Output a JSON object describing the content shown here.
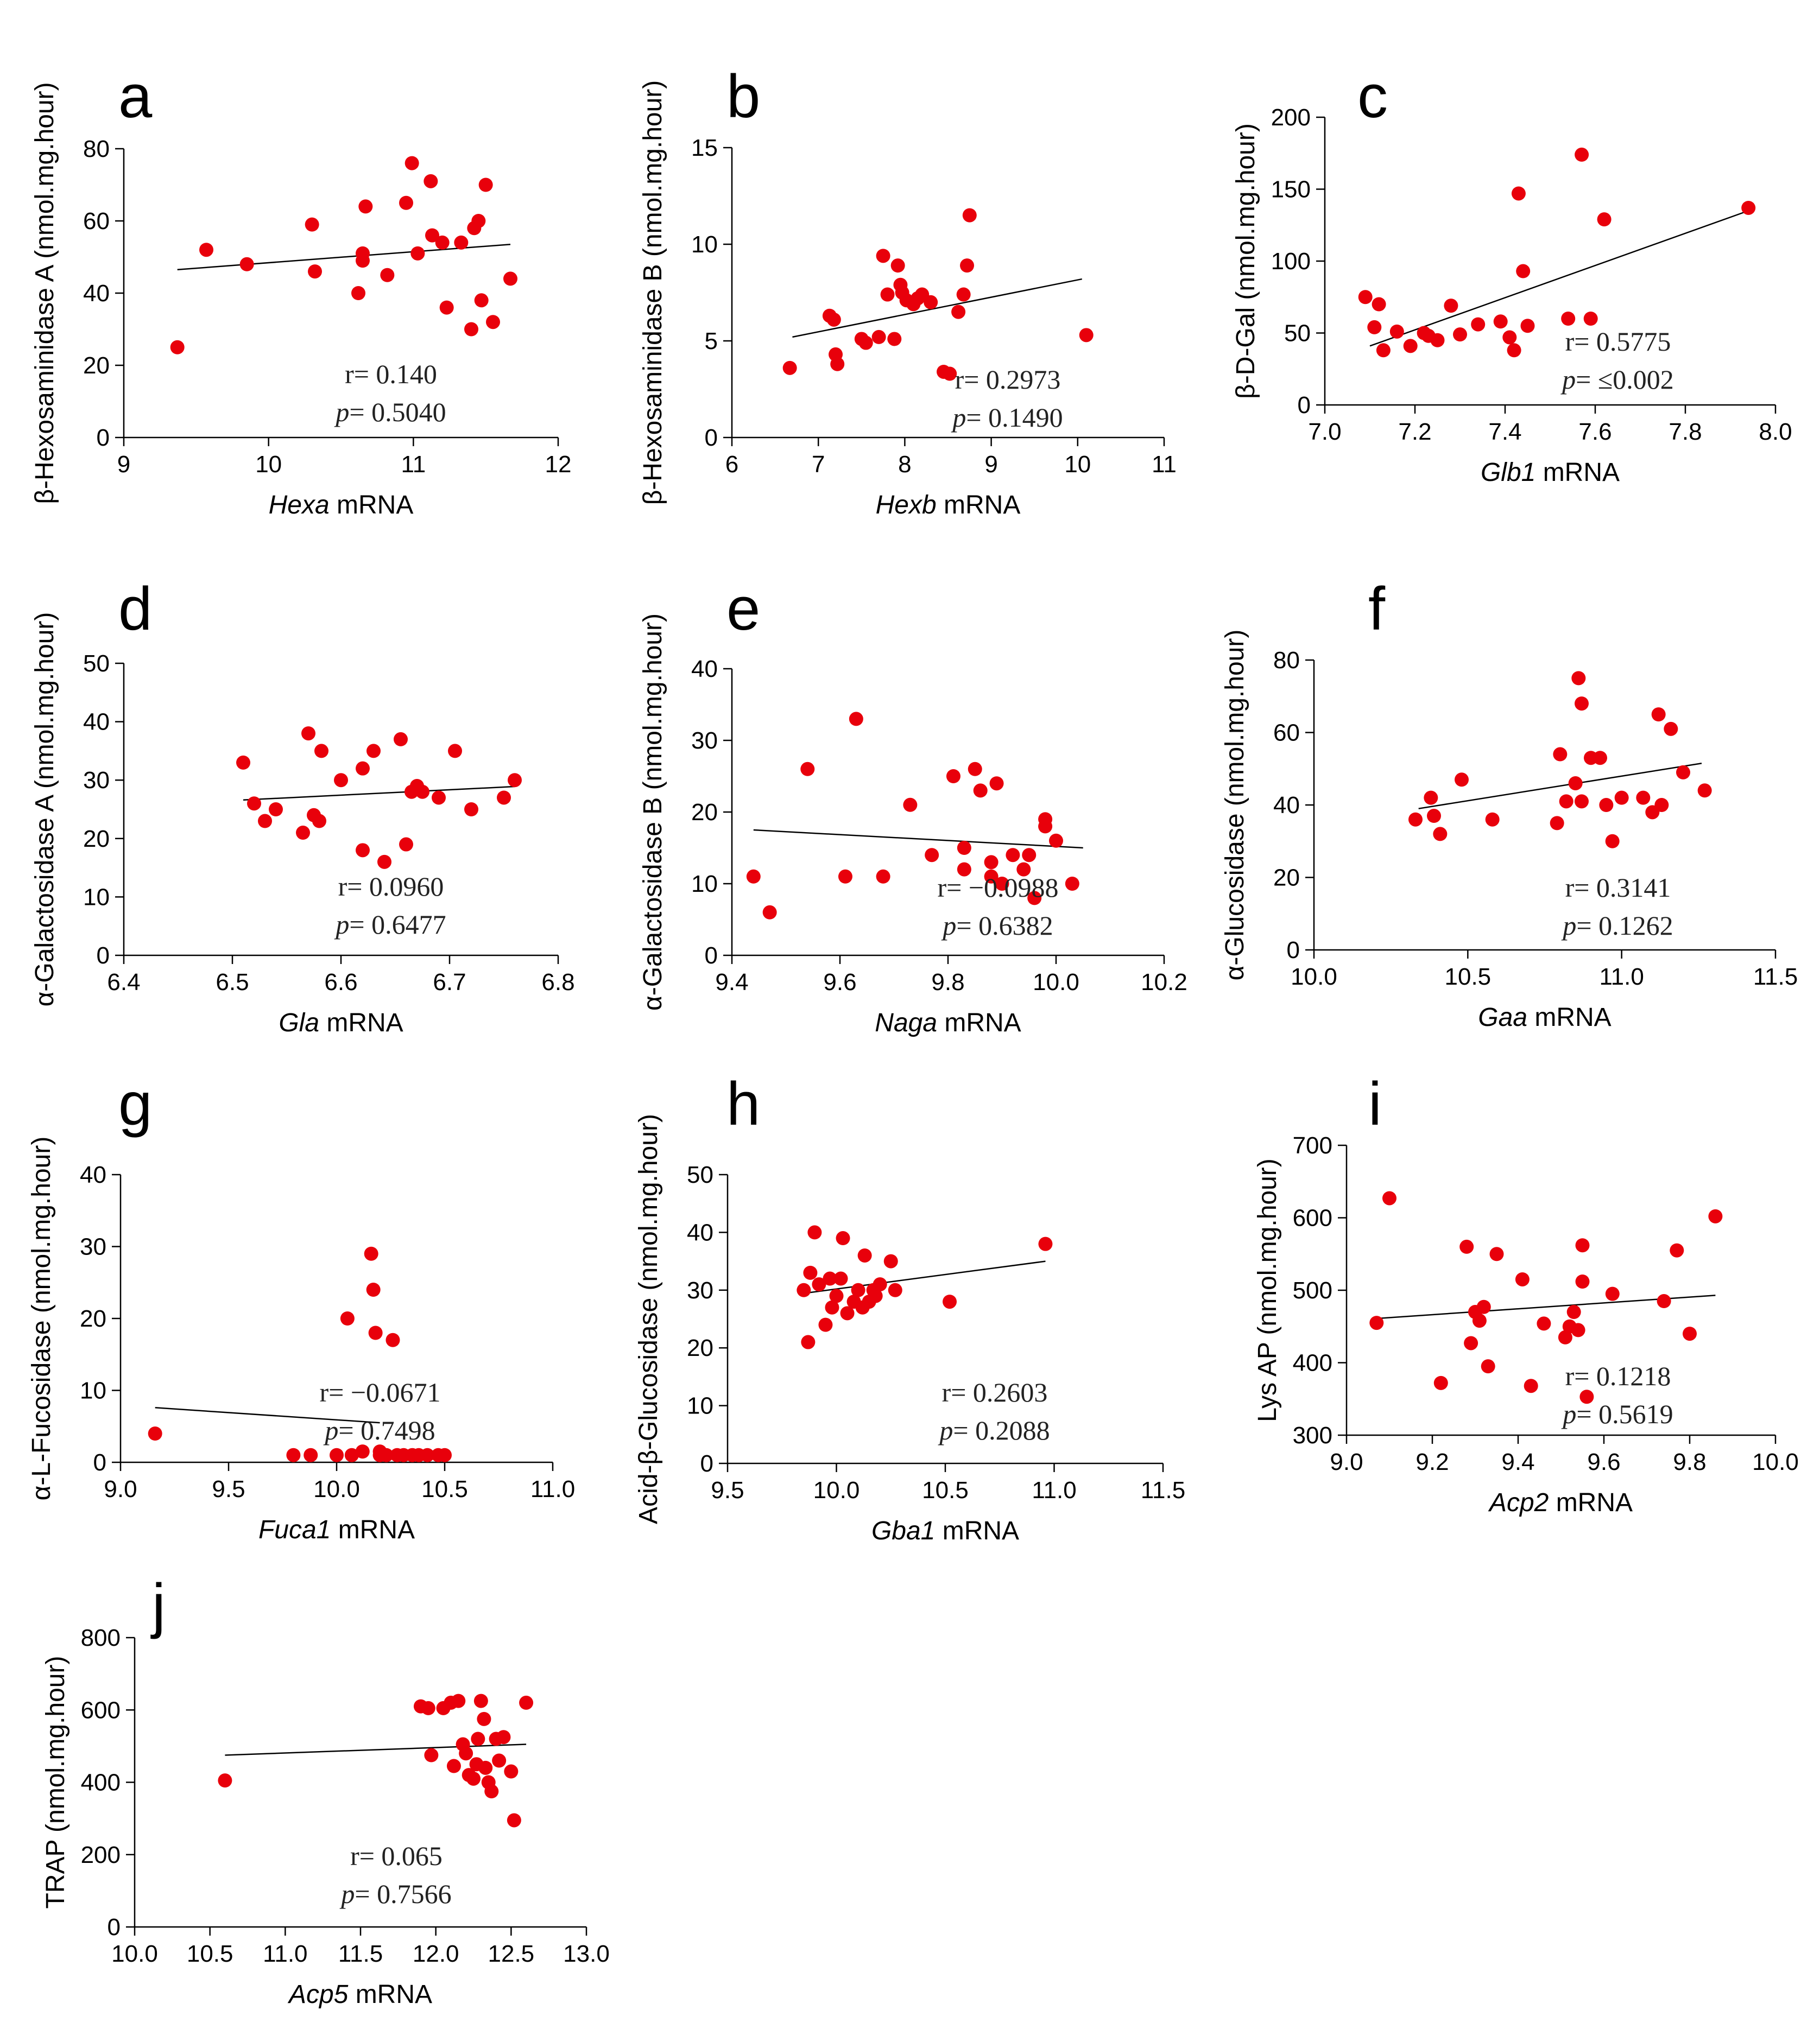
{
  "colors": {
    "point": "#e8000b",
    "axis": "#000000",
    "line": "#000000"
  },
  "chart_data": [
    {
      "type": "scatter",
      "panel": "a",
      "title": "",
      "xlabel_italic": "Hexa",
      "xlabel_suffix": " mRNA",
      "ylabel": "β-Hexosaminidase A (nmol.mg.hour)",
      "xlim": [
        9,
        12
      ],
      "ylim": [
        0,
        80
      ],
      "xticks": [
        9,
        10,
        11,
        12
      ],
      "xtick_labels": [
        "9",
        "10",
        "11",
        "12"
      ],
      "yticks": [
        0,
        20,
        40,
        60,
        80
      ],
      "ytick_labels": [
        "0",
        "20",
        "40",
        "60",
        "80"
      ],
      "x": [
        9.37,
        9.57,
        9.85,
        10.3,
        10.32,
        10.62,
        10.65,
        10.65,
        10.67,
        10.82,
        10.95,
        10.99,
        11.03,
        11.12,
        11.13,
        11.2,
        11.23,
        11.33,
        11.4,
        11.42,
        11.45,
        11.47,
        11.5,
        11.55,
        11.67
      ],
      "y": [
        25,
        52,
        48,
        59,
        46,
        40,
        51,
        49,
        64,
        45,
        65,
        76,
        51,
        71,
        56,
        54,
        36,
        54,
        30,
        58,
        60,
        38,
        70,
        32,
        44
      ],
      "fit": {
        "x": [
          9.37,
          11.67
        ],
        "y": [
          46.5,
          53.5
        ]
      },
      "stats": {
        "r": "r= 0.140",
        "p_label": "p",
        "p_value": "= 0.5040"
      }
    },
    {
      "type": "scatter",
      "panel": "b",
      "title": "",
      "xlabel_italic": "Hexb",
      "xlabel_suffix": " mRNA",
      "ylabel": "β-Hexosaminidase B (nmol.mg.hour)",
      "xlim": [
        6,
        11
      ],
      "ylim": [
        0,
        15
      ],
      "xticks": [
        6,
        7,
        8,
        9,
        10,
        11
      ],
      "xtick_labels": [
        "6",
        "7",
        "8",
        "9",
        "10",
        "11"
      ],
      "yticks": [
        0,
        5,
        10,
        15
      ],
      "ytick_labels": [
        "0",
        "5",
        "10",
        "15"
      ],
      "x": [
        6.67,
        7.13,
        7.18,
        7.2,
        7.22,
        7.5,
        7.55,
        7.7,
        7.75,
        7.8,
        7.88,
        7.92,
        7.95,
        7.97,
        8.02,
        8.1,
        8.15,
        8.2,
        8.3,
        8.45,
        8.52,
        8.62,
        8.68,
        8.72,
        8.75,
        10.1
      ],
      "y": [
        3.6,
        6.3,
        6.1,
        4.3,
        3.8,
        5.1,
        4.9,
        5.2,
        9.4,
        7.4,
        5.1,
        8.9,
        7.9,
        7.5,
        7.1,
        6.9,
        7.2,
        7.4,
        7.0,
        3.4,
        3.3,
        6.5,
        7.4,
        8.9,
        11.5,
        5.3
      ],
      "fit": {
        "x": [
          6.7,
          10.05
        ],
        "y": [
          5.2,
          8.2
        ]
      },
      "stats": {
        "r": "r= 0.2973",
        "p_label": "p",
        "p_value": "= 0.1490"
      }
    },
    {
      "type": "scatter",
      "panel": "c",
      "title": "",
      "xlabel_italic": "Glb1",
      "xlabel_suffix": " mRNA",
      "ylabel": "β-D-Gal (nmol.mg.hour)",
      "xlim": [
        7.0,
        8.0
      ],
      "ylim": [
        0,
        200
      ],
      "xticks": [
        7.0,
        7.2,
        7.4,
        7.6,
        7.8,
        8.0
      ],
      "xtick_labels": [
        "7.0",
        "7.2",
        "7.4",
        "7.6",
        "7.8",
        "8.0"
      ],
      "yticks": [
        0,
        50,
        100,
        150,
        200
      ],
      "ytick_labels": [
        "0",
        "50",
        "100",
        "150",
        "200"
      ],
      "x": [
        7.09,
        7.11,
        7.12,
        7.13,
        7.16,
        7.19,
        7.22,
        7.23,
        7.25,
        7.28,
        7.3,
        7.34,
        7.39,
        7.41,
        7.42,
        7.43,
        7.44,
        7.45,
        7.54,
        7.57,
        7.59,
        7.62,
        7.94
      ],
      "y": [
        75,
        54,
        70,
        38,
        51,
        41,
        50,
        48,
        45,
        69,
        49,
        56,
        58,
        47,
        38,
        147,
        93,
        55,
        60,
        174,
        60,
        129,
        137
      ],
      "fit": {
        "x": [
          7.1,
          7.94
        ],
        "y": [
          41,
          135
        ]
      },
      "stats": {
        "r": "r= 0.5775",
        "p_label": "p",
        "p_value": "= ≤0.002"
      }
    },
    {
      "type": "scatter",
      "panel": "d",
      "title": "",
      "xlabel_italic": "Gla",
      "xlabel_suffix": " mRNA",
      "ylabel": "α-Galactosidase A (nmol.mg.hour)",
      "xlim": [
        6.4,
        6.8
      ],
      "ylim": [
        0,
        50
      ],
      "xticks": [
        6.4,
        6.5,
        6.6,
        6.7,
        6.8
      ],
      "xtick_labels": [
        "6.4",
        "6.5",
        "6.6",
        "6.7",
        "6.8"
      ],
      "yticks": [
        0,
        10,
        20,
        30,
        40,
        50
      ],
      "ytick_labels": [
        "0",
        "10",
        "20",
        "30",
        "40",
        "50"
      ],
      "x": [
        6.51,
        6.52,
        6.53,
        6.54,
        6.565,
        6.57,
        6.575,
        6.58,
        6.582,
        6.6,
        6.62,
        6.62,
        6.63,
        6.64,
        6.655,
        6.66,
        6.665,
        6.67,
        6.675,
        6.69,
        6.705,
        6.72,
        6.75,
        6.76
      ],
      "y": [
        33,
        26,
        23,
        25,
        21,
        38,
        24,
        23,
        35,
        30,
        18,
        32,
        35,
        16,
        37,
        19,
        28,
        29,
        28,
        27,
        35,
        25,
        27,
        30
      ],
      "fit": {
        "x": [
          6.51,
          6.76
        ],
        "y": [
          26.6,
          28.9
        ]
      },
      "stats": {
        "r": "r= 0.0960",
        "p_label": "p",
        "p_value": "= 0.6477"
      }
    },
    {
      "type": "scatter",
      "panel": "e",
      "title": "",
      "xlabel_italic": "Naga",
      "xlabel_suffix": " mRNA",
      "ylabel": "α-Galactosidase B (nmol.mg.hour)",
      "xlim": [
        9.4,
        10.2
      ],
      "ylim": [
        0,
        40
      ],
      "xticks": [
        9.4,
        9.6,
        9.8,
        10.0,
        10.2
      ],
      "xtick_labels": [
        "9.4",
        "9.6",
        "9.8",
        "10.0",
        "10.2"
      ],
      "yticks": [
        0,
        10,
        20,
        30,
        40
      ],
      "ytick_labels": [
        "0",
        "10",
        "20",
        "30",
        "40"
      ],
      "x": [
        9.44,
        9.47,
        9.54,
        9.61,
        9.63,
        9.68,
        9.73,
        9.77,
        9.81,
        9.83,
        9.83,
        9.85,
        9.86,
        9.88,
        9.88,
        9.89,
        9.9,
        9.92,
        9.94,
        9.95,
        9.96,
        9.98,
        9.98,
        10.0,
        10.03
      ],
      "y": [
        11,
        6,
        26,
        11,
        33,
        11,
        21,
        14,
        25,
        12,
        15,
        26,
        23,
        13,
        11,
        24,
        10,
        14,
        12,
        14,
        8,
        19,
        18,
        16,
        10
      ],
      "fit": {
        "x": [
          9.44,
          10.05
        ],
        "y": [
          17.5,
          15.0
        ]
      },
      "stats": {
        "r": "r= −0.0988",
        "p_label": "p",
        "p_value": "=  0.6382"
      }
    },
    {
      "type": "scatter",
      "panel": "f",
      "title": "",
      "xlabel_italic": "Gaa",
      "xlabel_suffix": " mRNA",
      "ylabel": "α-Glucosidase (nmol.mg.hour)",
      "xlim": [
        10.0,
        11.5
      ],
      "ylim": [
        0,
        80
      ],
      "xticks": [
        10.0,
        10.5,
        11.0,
        11.5
      ],
      "xtick_labels": [
        "10.0",
        "10.5",
        "11.0",
        "11.5"
      ],
      "yticks": [
        0,
        20,
        40,
        60,
        80
      ],
      "ytick_labels": [
        "0",
        "20",
        "40",
        "60",
        "80"
      ],
      "x": [
        10.33,
        10.38,
        10.39,
        10.41,
        10.48,
        10.58,
        10.79,
        10.8,
        10.82,
        10.85,
        10.86,
        10.87,
        10.87,
        10.9,
        10.93,
        10.95,
        10.97,
        11.0,
        11.07,
        11.1,
        11.12,
        11.13,
        11.16,
        11.2,
        11.27
      ],
      "y": [
        36,
        42,
        37,
        32,
        47,
        36,
        35,
        54,
        41,
        46,
        75,
        41,
        68,
        53,
        53,
        40,
        30,
        42,
        42,
        38,
        65,
        40,
        61,
        49,
        44
      ],
      "fit": {
        "x": [
          10.34,
          11.26
        ],
        "y": [
          39.0,
          51.5
        ]
      },
      "stats": {
        "r": "r= 0.3141",
        "p_label": "p",
        "p_value": "= 0.1262"
      }
    },
    {
      "type": "scatter",
      "panel": "g",
      "title": "",
      "xlabel_italic": "Fuca1",
      "xlabel_suffix": " mRNA",
      "ylabel": "α-L-Fucosidase (nmol.mg.hour)",
      "xlim": [
        9.0,
        11.0
      ],
      "ylim": [
        0,
        40
      ],
      "xticks": [
        9.0,
        9.5,
        10.0,
        10.5,
        11.0
      ],
      "xtick_labels": [
        "9.0",
        "9.5",
        "10.0",
        "10.5",
        "11.0"
      ],
      "yticks": [
        0,
        10,
        20,
        30,
        40
      ],
      "ytick_labels": [
        "0",
        "10",
        "20",
        "30",
        "40"
      ],
      "x": [
        9.16,
        9.8,
        9.88,
        10.0,
        10.05,
        10.07,
        10.12,
        10.16,
        10.17,
        10.18,
        10.2,
        10.2,
        10.23,
        10.26,
        10.28,
        10.31,
        10.35,
        10.38,
        10.42,
        10.47,
        10.5
      ],
      "y": [
        4,
        1,
        1,
        1,
        20,
        1,
        1.5,
        29,
        24,
        18,
        1.5,
        1,
        1,
        17,
        1,
        1,
        1,
        1,
        1,
        1,
        1
      ],
      "fit": {
        "x": [
          9.16,
          10.2
        ],
        "y": [
          7.6,
          5.5
        ]
      },
      "stats": {
        "r": "r= −0.0671",
        "p_label": "p",
        "p_value": "= 0.7498"
      }
    },
    {
      "type": "scatter",
      "panel": "h",
      "title": "",
      "xlabel_italic": "Gba1",
      "xlabel_suffix": " mRNA",
      "ylabel": "Acid-β-Glucosidase (nmol.mg.hour)",
      "xlim": [
        9.5,
        11.5
      ],
      "ylim": [
        0,
        50
      ],
      "xticks": [
        9.5,
        10.0,
        10.5,
        11.0,
        11.5
      ],
      "xtick_labels": [
        "9.5",
        "10.0",
        "10.5",
        "11.0",
        "11.5"
      ],
      "yticks": [
        0,
        10,
        20,
        30,
        40,
        50
      ],
      "ytick_labels": [
        "0",
        "10",
        "20",
        "30",
        "40",
        "50"
      ],
      "x": [
        9.85,
        9.87,
        9.88,
        9.9,
        9.92,
        9.95,
        9.97,
        9.98,
        10.0,
        10.02,
        10.03,
        10.05,
        10.08,
        10.1,
        10.12,
        10.13,
        10.15,
        10.17,
        10.18,
        10.2,
        10.25,
        10.27,
        10.52,
        10.96
      ],
      "y": [
        30,
        21,
        33,
        40,
        31,
        24,
        32,
        27,
        29,
        32,
        39,
        26,
        28,
        30,
        27,
        36,
        28,
        30,
        29,
        31,
        35,
        30,
        28,
        38
      ],
      "fit": {
        "x": [
          9.86,
          10.96
        ],
        "y": [
          29.5,
          35.0
        ]
      },
      "stats": {
        "r": "r= 0.2603",
        "p_label": "p",
        "p_value": "= 0.2088"
      }
    },
    {
      "type": "scatter",
      "panel": "i",
      "title": "",
      "xlabel_italic": "Acp2",
      "xlabel_suffix": " mRNA",
      "ylabel": "Lys AP (nmol.mg.hour)",
      "xlim": [
        9.0,
        10.0
      ],
      "ylim": [
        300,
        700
      ],
      "xticks": [
        9.0,
        9.2,
        9.4,
        9.6,
        9.8,
        10.0
      ],
      "xtick_labels": [
        "9.0",
        "9.2",
        "9.4",
        "9.6",
        "9.8",
        "10.0"
      ],
      "yticks": [
        300,
        400,
        500,
        600,
        700
      ],
      "ytick_labels": [
        "300",
        "400",
        "500",
        "600",
        "700"
      ],
      "x": [
        9.07,
        9.1,
        9.22,
        9.28,
        9.29,
        9.3,
        9.31,
        9.32,
        9.33,
        9.35,
        9.41,
        9.43,
        9.46,
        9.51,
        9.52,
        9.53,
        9.54,
        9.55,
        9.56,
        9.55,
        9.62,
        9.74,
        9.77,
        9.8,
        9.86
      ],
      "y": [
        455,
        627,
        372,
        560,
        427,
        470,
        458,
        477,
        395,
        550,
        515,
        368,
        454,
        435,
        450,
        470,
        445,
        562,
        353,
        512,
        495,
        485,
        555,
        440,
        602
      ],
      "fit": {
        "x": [
          9.07,
          9.86
        ],
        "y": [
          461,
          493
        ]
      },
      "stats": {
        "r": "r= 0.1218",
        "p_label": "p",
        "p_value": "= 0.5619"
      }
    },
    {
      "type": "scatter",
      "panel": "j",
      "title": "",
      "xlabel_italic": "Acp5",
      "xlabel_suffix": " mRNA",
      "ylabel": "TRAP (nmol.mg.hour)",
      "xlim": [
        10.0,
        13.0
      ],
      "ylim": [
        0,
        800
      ],
      "xticks": [
        10.0,
        10.5,
        11.0,
        11.5,
        12.0,
        12.5,
        13.0
      ],
      "xtick_labels": [
        "10.0",
        "10.5",
        "11.0",
        "11.5",
        "12.0",
        "12.5",
        "13.0"
      ],
      "yticks": [
        0,
        200,
        400,
        600,
        800
      ],
      "ytick_labels": [
        "0",
        "200",
        "400",
        "600",
        "800"
      ],
      "x": [
        10.6,
        11.9,
        11.95,
        11.97,
        12.05,
        12.1,
        12.12,
        12.15,
        12.18,
        12.2,
        12.22,
        12.25,
        12.27,
        12.28,
        12.3,
        12.32,
        12.33,
        12.35,
        12.37,
        12.4,
        12.42,
        12.45,
        12.5,
        12.52,
        12.6
      ],
      "y": [
        405,
        610,
        605,
        475,
        605,
        620,
        445,
        625,
        505,
        480,
        420,
        410,
        450,
        520,
        625,
        575,
        440,
        400,
        375,
        520,
        460,
        525,
        430,
        295,
        620
      ],
      "fit": {
        "x": [
          10.6,
          12.6
        ],
        "y": [
          475,
          505
        ]
      },
      "stats": {
        "r": "r= 0.065",
        "p_label": "p",
        "p_value": "= 0.7566"
      }
    }
  ]
}
